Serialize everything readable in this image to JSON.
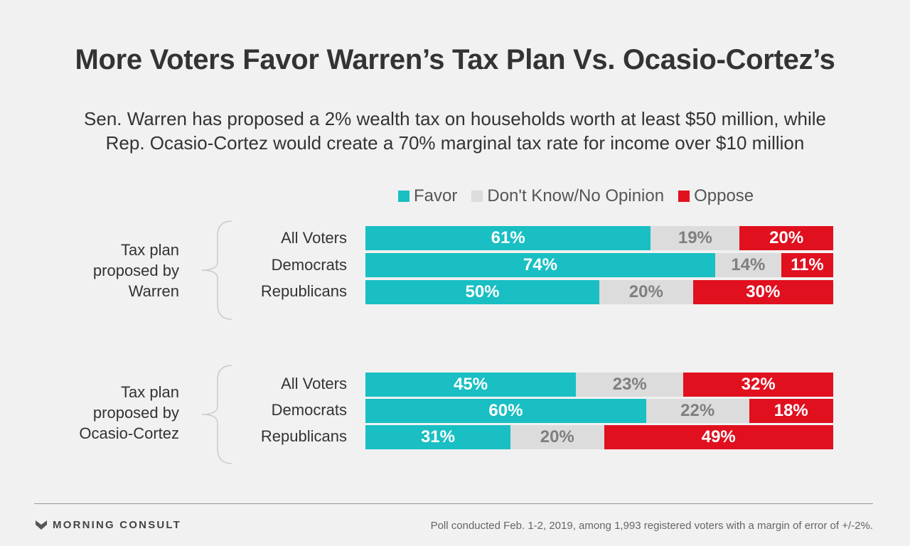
{
  "title": "More Voters Favor Warren’s Tax Plan Vs. Ocasio-Cortez’s",
  "subtitle_line1": "Sen. Warren has proposed a 2% wealth tax on households worth at least $50 million, while",
  "subtitle_line2": "Rep. Ocasio-Cortez would create a 70% marginal tax rate for income over $10 million",
  "colors": {
    "favor": "#19bfc3",
    "dont_know": "#dcdcdc",
    "oppose": "#e0101f",
    "favor_text": "#ffffff",
    "dont_know_text": "#7f7f7f",
    "oppose_text": "#ffffff"
  },
  "chart_data": {
    "type": "bar",
    "stacked": true,
    "orientation": "horizontal",
    "legend": [
      "Favor",
      "Don't Know/No Opinion",
      "Oppose"
    ],
    "legend_position": "top",
    "groups": [
      {
        "label_lines": [
          "Tax plan",
          "proposed by",
          "Warren"
        ],
        "rows": [
          {
            "label": "All Voters",
            "favor": 61,
            "dont_know": 19,
            "oppose": 20
          },
          {
            "label": "Democrats",
            "favor": 74,
            "dont_know": 14,
            "oppose": 11
          },
          {
            "label": "Republicans",
            "favor": 50,
            "dont_know": 20,
            "oppose": 30
          }
        ]
      },
      {
        "label_lines": [
          "Tax plan",
          "proposed by",
          "Ocasio-Cortez"
        ],
        "rows": [
          {
            "label": "All Voters",
            "favor": 45,
            "dont_know": 23,
            "oppose": 32
          },
          {
            "label": "Democrats",
            "favor": 60,
            "dont_know": 22,
            "oppose": 18
          },
          {
            "label": "Republicans",
            "favor": 31,
            "dont_know": 20,
            "oppose": 49
          }
        ]
      }
    ]
  },
  "footer": {
    "brand": "MORNING CONSULT",
    "brand_icon": "morning-consult-logo-icon",
    "source": "Poll conducted Feb. 1-2, 2019, among 1,993 registered voters with a margin of error of +/-2%."
  }
}
